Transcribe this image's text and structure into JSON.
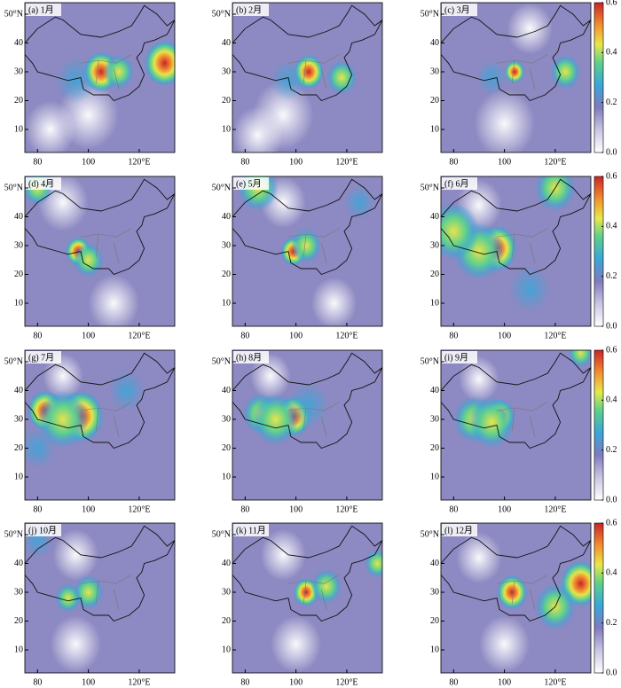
{
  "panels": [
    {
      "label": "(a) 1月"
    },
    {
      "label": "(b) 2月"
    },
    {
      "label": "(c) 3月"
    },
    {
      "label": "(d) 4月"
    },
    {
      "label": "(e) 5月"
    },
    {
      "label": "(f) 6月"
    },
    {
      "label": "(g) 7月"
    },
    {
      "label": "(h) 8月"
    },
    {
      "label": "(i) 9月"
    },
    {
      "label": "(j) 10月"
    },
    {
      "label": "(k) 11月"
    },
    {
      "label": "(l) 12月"
    }
  ],
  "xlim": [
    75,
    134
  ],
  "xticks": [
    80,
    100,
    {
      "value": 120,
      "label": "120°E"
    }
  ],
  "ylim": [
    2,
    54
  ],
  "yticks": [
    10,
    20,
    30,
    40,
    {
      "value": 50,
      "label": "50°N"
    }
  ],
  "colorbar": {
    "lim": [
      0,
      0.6
    ],
    "ticks": [
      {
        "value": 0,
        "label": "0.0"
      },
      {
        "value": 0.2,
        "label": "0.2"
      },
      {
        "value": 0.4,
        "label": "0.4"
      },
      {
        "value": 0.6,
        "label": "0.6"
      }
    ]
  }
}
